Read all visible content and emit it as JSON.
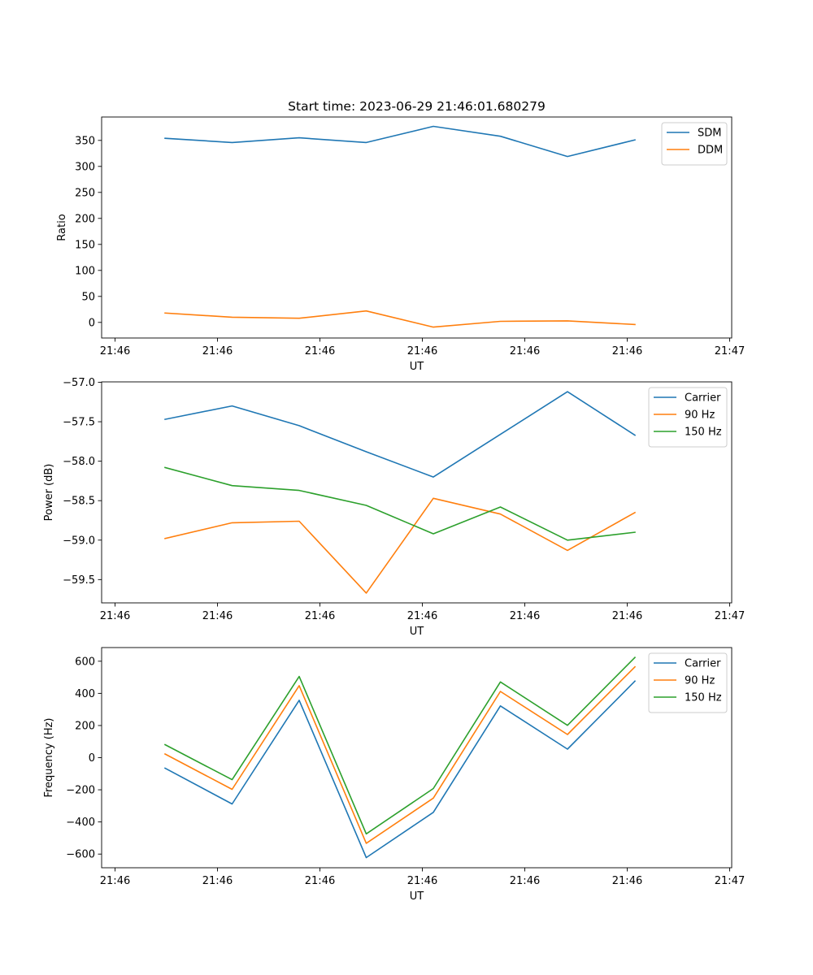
{
  "figure": {
    "title": "Start time: 2023-06-29 21:46:01.680279"
  },
  "chart_data": [
    {
      "type": "line",
      "title": "Start time: 2023-06-29 21:46:01.680279",
      "xlabel": "UT",
      "ylabel": "Ratio",
      "x_tick_labels": [
        "21:46",
        "21:46",
        "21:46",
        "21:46",
        "21:46",
        "21:46",
        "21:47"
      ],
      "y_ticks": [
        0,
        50,
        100,
        150,
        200,
        250,
        300,
        350
      ],
      "ylim": [
        -30,
        395
      ],
      "grid": false,
      "legend": "top-right",
      "series": [
        {
          "name": "SDM",
          "color": "#1f77b4",
          "values": [
            354,
            346,
            355,
            346,
            377,
            358,
            319,
            351
          ]
        },
        {
          "name": "DDM",
          "color": "#ff7f0e",
          "values": [
            18,
            10,
            8,
            22,
            -9,
            2,
            3,
            -4
          ]
        }
      ]
    },
    {
      "type": "line",
      "title": "",
      "xlabel": "UT",
      "ylabel": "Power (dB)",
      "x_tick_labels": [
        "21:46",
        "21:46",
        "21:46",
        "21:46",
        "21:46",
        "21:46",
        "21:47"
      ],
      "y_ticks": [
        -57.0,
        -57.5,
        -58.0,
        -58.5,
        -59.0,
        -59.5
      ],
      "y_tick_labels": [
        "−57.0",
        "−57.5",
        "−58.0",
        "−58.5",
        "−59.0",
        "−59.5"
      ],
      "ylim": [
        -59.795,
        -56.995
      ],
      "grid": false,
      "legend": "top-right",
      "series": [
        {
          "name": "Carrier",
          "color": "#1f77b4",
          "values": [
            -57.47,
            -57.3,
            -57.55,
            -57.88,
            -58.2,
            -57.66,
            -57.12,
            -57.67
          ]
        },
        {
          "name": "90 Hz",
          "color": "#ff7f0e",
          "values": [
            -58.98,
            -58.78,
            -58.76,
            -59.67,
            -58.47,
            -58.67,
            -59.13,
            -58.65
          ]
        },
        {
          "name": "150 Hz",
          "color": "#2ca02c",
          "values": [
            -58.08,
            -58.31,
            -58.37,
            -58.56,
            -58.92,
            -58.58,
            -59.0,
            -58.9
          ]
        }
      ]
    },
    {
      "type": "line",
      "title": "",
      "xlabel": "UT",
      "ylabel": "Frequency (Hz)",
      "x_tick_labels": [
        "21:46",
        "21:46",
        "21:46",
        "21:46",
        "21:46",
        "21:46",
        "21:47"
      ],
      "y_ticks": [
        600,
        400,
        200,
        0,
        -200,
        -400,
        -600
      ],
      "y_tick_labels": [
        "600",
        "400",
        "200",
        "0",
        "−200",
        "−400",
        "−600"
      ],
      "ylim": [
        -685,
        685
      ],
      "grid": false,
      "legend": "top-right",
      "series": [
        {
          "name": "Carrier",
          "color": "#1f77b4",
          "values": [
            -65,
            -288,
            357,
            -622,
            -340,
            322,
            53,
            476
          ]
        },
        {
          "name": "90 Hz",
          "color": "#ff7f0e",
          "values": [
            23,
            -197,
            448,
            -533,
            -252,
            412,
            144,
            565
          ]
        },
        {
          "name": "150 Hz",
          "color": "#2ca02c",
          "values": [
            81,
            -137,
            505,
            -474,
            -192,
            471,
            201,
            624
          ]
        }
      ]
    }
  ]
}
